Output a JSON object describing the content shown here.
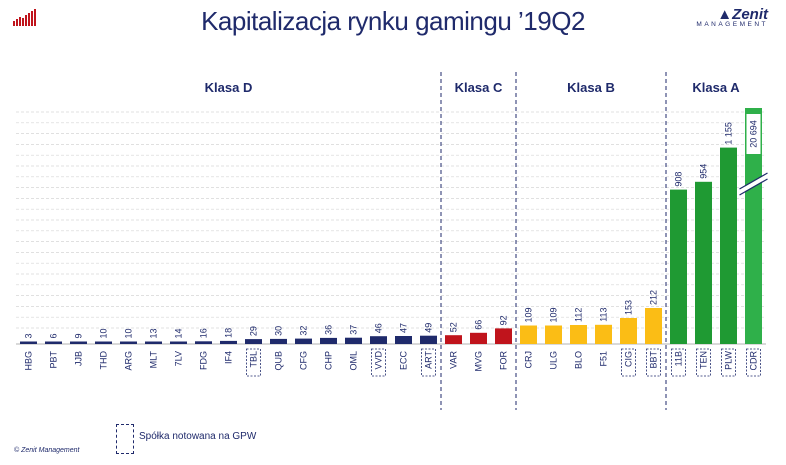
{
  "title": "Kapitalizacja rynku gamingu ’19Q2",
  "brand": {
    "name": "Zenit",
    "subtitle": "MANAGEMENT"
  },
  "legend": {
    "label": "Spółka notowana na GPW"
  },
  "copyright": "© Zenit Management",
  "colors": {
    "D": "#1f2a6b",
    "C": "#c0141c",
    "B": "#fbbd15",
    "A": "#1f9a33",
    "A_top": "#2fb04a",
    "text": "#1f2a6b"
  },
  "chart_data": {
    "type": "bar",
    "groups": [
      {
        "label": "Klasa D",
        "class": "D",
        "categories": [
          "HBG",
          "PBT",
          "JJB",
          "THD",
          "ARG",
          "MLT",
          "7LV",
          "FDG",
          "IF4",
          "TBL",
          "QUB",
          "CFG",
          "CHP",
          "OML",
          "VVD",
          "ECC",
          "ART"
        ],
        "values": [
          3,
          6,
          9,
          10,
          10,
          13,
          14,
          16,
          18,
          29,
          30,
          32,
          36,
          37,
          46,
          47,
          49
        ]
      },
      {
        "label": "Klasa C",
        "class": "C",
        "categories": [
          "VAR",
          "MVG",
          "FOR"
        ],
        "values": [
          52,
          66,
          92
        ]
      },
      {
        "label": "Klasa B",
        "class": "B",
        "categories": [
          "CRJ",
          "ULG",
          "BLO",
          "F51",
          "CIG",
          "BBT"
        ],
        "values": [
          109,
          109,
          112,
          113,
          153,
          212
        ]
      },
      {
        "label": "Klasa A",
        "class": "A",
        "categories": [
          "11B",
          "TEN",
          "PLW",
          "CDR"
        ],
        "values": [
          908,
          954,
          1155,
          20694
        ]
      }
    ],
    "value_labels": {
      "HBG": "3",
      "PBT": "6",
      "JJB": "9",
      "THD": "10",
      "ARG": "10",
      "MLT": "13",
      "7LV": "14",
      "FDG": "16",
      "IF4": "18",
      "TBL": "29",
      "QUB": "30",
      "CFG": "32",
      "CHP": "36",
      "OML": "37",
      "VVD": "46",
      "ECC": "47",
      "ART": "49",
      "VAR": "52",
      "MVG": "66",
      "FOR": "92",
      "CRJ": "109",
      "ULG": "109",
      "BLO": "112",
      "F51": "113",
      "CIG": "153",
      "BBT": "212",
      "11B": "908",
      "TEN": "954",
      "PLW": "1 155",
      "CDR": "20 694"
    },
    "gpw_listed": [
      "TBL",
      "VVD",
      "ART",
      "CIG",
      "BBT",
      "11B",
      "TEN",
      "PLW",
      "CDR"
    ],
    "broken_axis_bars": [
      "CDR"
    ],
    "grid": true
  }
}
